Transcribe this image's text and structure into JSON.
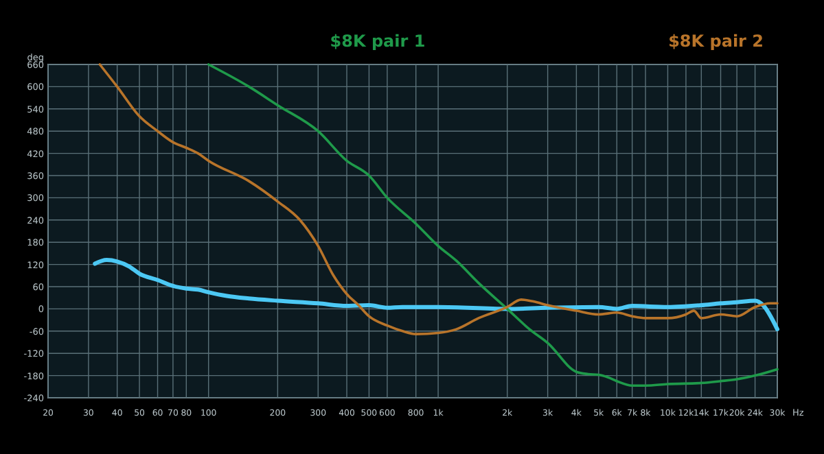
{
  "chart_data": {
    "type": "line",
    "xlabel": "Hz",
    "ylabel": "deg",
    "log": "x",
    "grid": true,
    "legend": "top",
    "marker": "none",
    "line_style": "solid",
    "xlim": [
      20,
      30000
    ],
    "ylim": [
      -240,
      660
    ],
    "xticks": [
      20,
      30,
      40,
      50,
      60,
      70,
      80,
      100,
      200,
      300,
      400,
      500,
      600,
      800,
      {
        "value": 1000,
        "label": "1k"
      },
      {
        "value": 2000,
        "label": "2k"
      },
      {
        "value": 3000,
        "label": "3k"
      },
      {
        "value": 4000,
        "label": "4k"
      },
      {
        "value": 5000,
        "label": "5k"
      },
      {
        "value": 6000,
        "label": "6k"
      },
      {
        "value": 7000,
        "label": "7k"
      },
      {
        "value": 8000,
        "label": "8k"
      },
      {
        "value": 10000,
        "label": "10k"
      },
      {
        "value": 12000,
        "label": "12k"
      },
      {
        "value": 14000,
        "label": "14k"
      },
      {
        "value": 17000,
        "label": "17k"
      },
      {
        "value": 20000,
        "label": "20k"
      },
      {
        "value": 24000,
        "label": "24k"
      },
      {
        "value": 30000,
        "label": "30k"
      }
    ],
    "yticks": [
      -240,
      -180,
      -120,
      -60,
      0,
      60,
      120,
      180,
      240,
      300,
      360,
      420,
      480,
      540,
      600,
      660
    ],
    "series": [
      {
        "color": "#4cc8f4",
        "x": [
          32,
          36,
          40,
          45,
          50,
          60,
          70,
          80,
          90,
          100,
          120,
          150,
          200,
          300,
          400,
          500,
          600,
          700,
          1000,
          2000,
          3000,
          5000,
          6000,
          7000,
          10000,
          14000,
          17000,
          20000,
          24000,
          26000,
          30000
        ],
        "values": [
          122,
          132,
          128,
          115,
          95,
          78,
          62,
          55,
          52,
          45,
          35,
          28,
          22,
          15,
          8,
          10,
          3,
          5,
          5,
          0,
          3,
          5,
          0,
          8,
          5,
          10,
          15,
          18,
          22,
          10,
          -55
        ]
      },
      {
        "name": "$8K pair 1",
        "color": "#1f9a4a",
        "x": [
          100,
          150,
          200,
          300,
          400,
          500,
          600,
          800,
          1000,
          1200,
          1500,
          2000,
          2500,
          3000,
          4000,
          4500,
          5000,
          5500,
          6000,
          7000,
          8000,
          10000,
          14000,
          17000,
          20000,
          24000,
          30000
        ],
        "values": [
          660,
          600,
          550,
          480,
          400,
          360,
          300,
          230,
          170,
          130,
          70,
          0,
          -55,
          -92,
          -170,
          -176,
          -178,
          -185,
          -195,
          -207,
          -207,
          -203,
          -200,
          -195,
          -190,
          -180,
          -163
        ]
      },
      {
        "name": "$8K pair 2",
        "color": "#b8742a",
        "x": [
          33.6,
          40,
          50,
          60,
          70,
          80,
          90,
          100,
          150,
          200,
          250,
          300,
          350,
          400,
          450,
          500,
          600,
          700,
          800,
          1000,
          1200,
          1500,
          2000,
          2300,
          2600,
          3000,
          4000,
          5000,
          6000,
          7000,
          8000,
          10000,
          12000,
          13000,
          14000,
          17000,
          20000,
          24000,
          28000,
          30000
        ],
        "values": [
          660,
          600,
          520,
          480,
          450,
          435,
          420,
          400,
          345,
          290,
          240,
          170,
          90,
          40,
          10,
          -20,
          -45,
          -60,
          -68,
          -65,
          -55,
          -25,
          5,
          25,
          20,
          10,
          -5,
          -15,
          -10,
          -20,
          -25,
          -25,
          -15,
          -5,
          -25,
          -15,
          -20,
          5,
          15,
          15
        ]
      }
    ]
  }
}
